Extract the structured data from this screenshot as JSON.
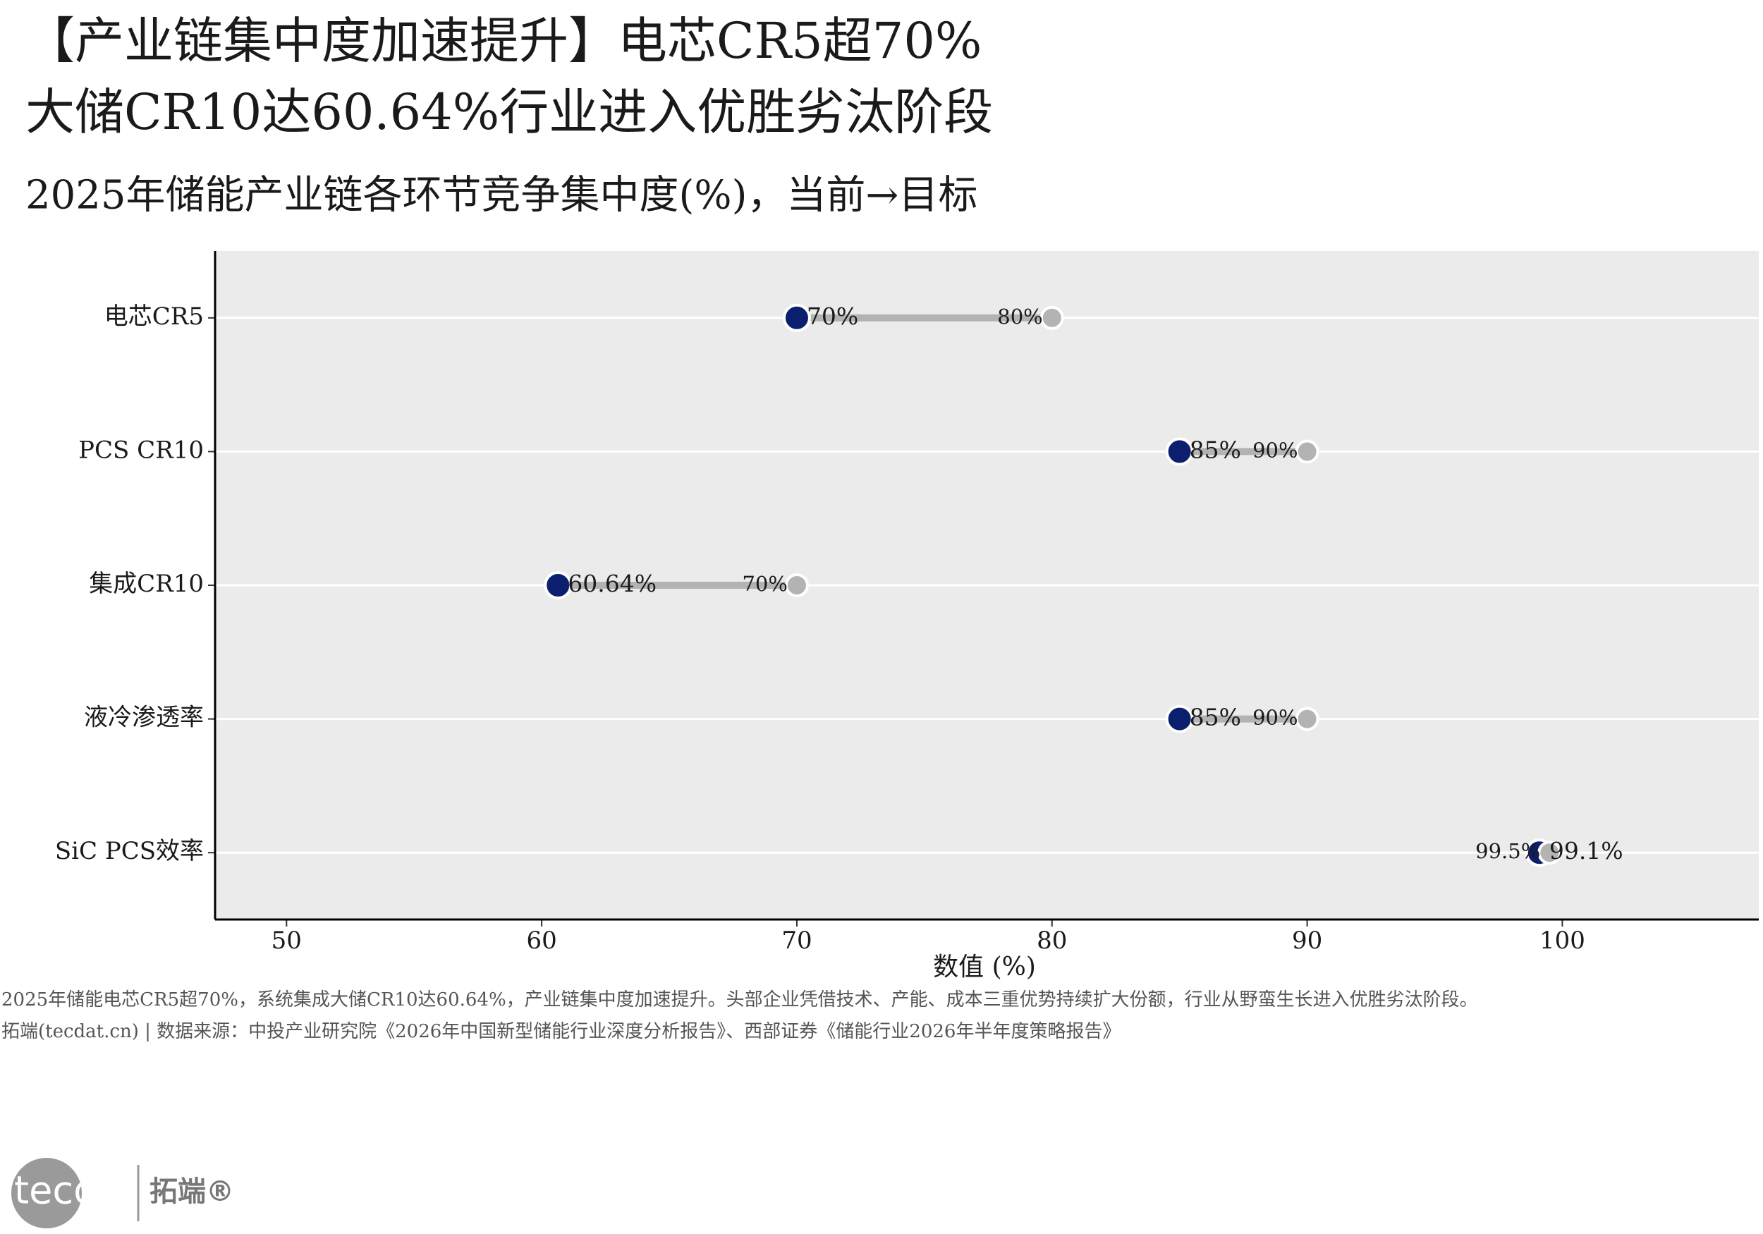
{
  "chart_data": {
    "type": "dumbbell",
    "title": [
      "【产业链集中度加速提升】电芯CR5超70%",
      "大储CR10达60.64%行业进入优胜劣汰阶段"
    ],
    "subtitle": "2025年储能产业链各环节竞争集中度(%)，当前→目标",
    "categories": [
      "电芯CR5",
      "PCS CR10",
      "集成CR10",
      "液冷渗透率",
      "SiC PCS效率"
    ],
    "series": [
      {
        "color": "#0B1F6E",
        "values": [
          70,
          85,
          60.64,
          85,
          99.1
        ],
        "value_labels": [
          "70%",
          "85%",
          "60.64%",
          "85%",
          "99.1%"
        ]
      },
      {
        "color": "#B3B3B3",
        "values": [
          80,
          90,
          70,
          90,
          99.5
        ],
        "value_labels": [
          "80%",
          "90%",
          "70%",
          "90%",
          "99.5%"
        ]
      }
    ],
    "xlim": [
      47.2,
      107.7
    ],
    "xticks": [
      50,
      60,
      70,
      80,
      90,
      100
    ],
    "xlabel": "数值 (%)",
    "grid": "y",
    "panel_color": "#EBEBEB"
  },
  "caption": "2025年储能电芯CR5超70%，系统集成大储CR10达60.64%，产业链集中度加速提升。头部企业凭借技术、产能、成本三重优势持续扩大份额，行业从野蛮生长进入优胜劣汰阶段。",
  "source": "拓端(tecdat.cn) | 数据来源：中投产业研究院《2026年中国新型储能行业深度分析报告》、西部证券《储能行业2026年半年度策略报告》",
  "logo": {
    "mark": "tecdat",
    "brand": "拓端®"
  }
}
